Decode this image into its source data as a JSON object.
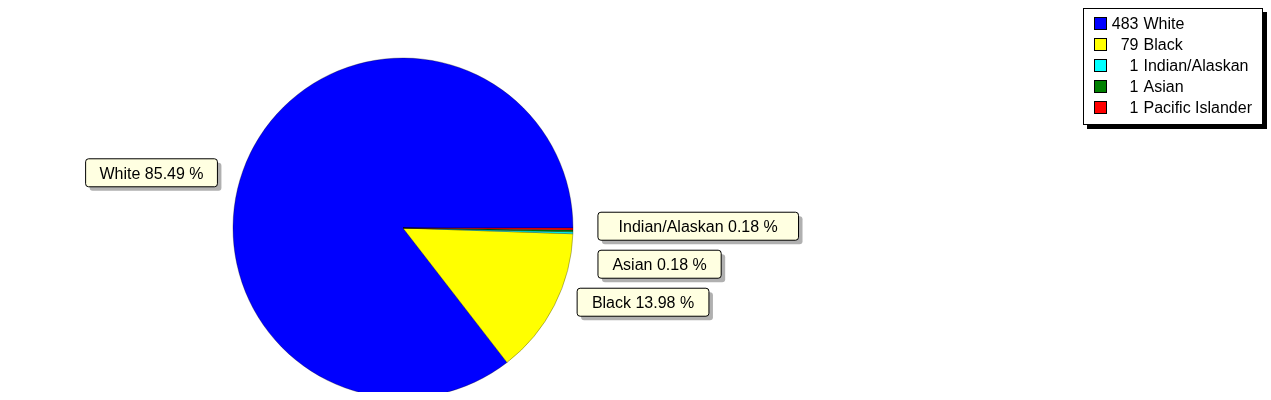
{
  "chart_data": {
    "type": "pie",
    "categories": [
      "White",
      "Black",
      "Indian/Alaskan",
      "Asian",
      "Pacific Islander"
    ],
    "values": [
      85.49,
      13.98,
      0.18,
      0.18,
      0.18
    ],
    "annotations": [
      "483",
      "79",
      "1",
      "1",
      "1"
    ],
    "colors": [
      "#0000ff",
      "#ffff00",
      "#00ffff",
      "#008000",
      "#ff0000"
    ],
    "value_labels": [
      "85.49 %",
      "13.98 %",
      "0.18 %",
      "0.18 %",
      null
    ],
    "legend": "top right"
  }
}
